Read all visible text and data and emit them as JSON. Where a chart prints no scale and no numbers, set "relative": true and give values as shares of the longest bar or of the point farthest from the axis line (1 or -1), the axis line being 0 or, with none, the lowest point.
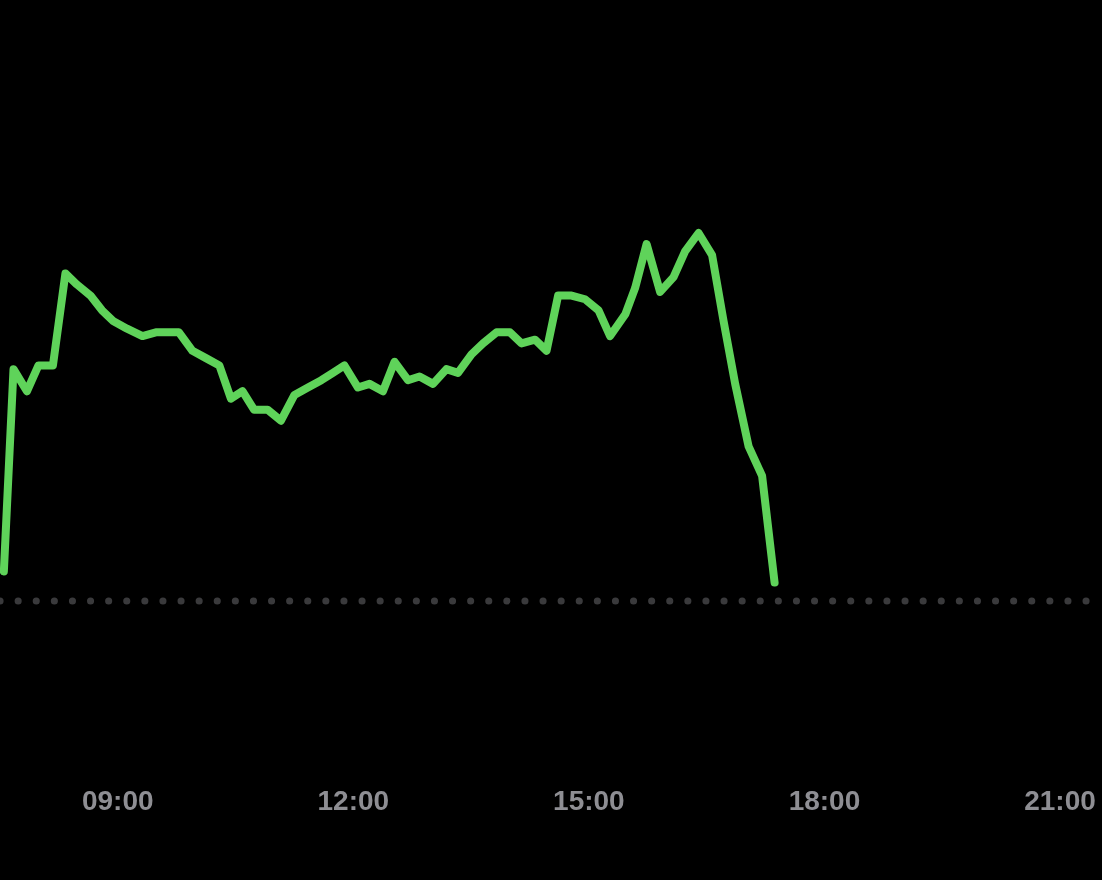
{
  "chart_data": {
    "type": "line",
    "relative": true,
    "x": [
      7.549,
      7.672,
      7.843,
      7.99,
      8.174,
      8.333,
      8.48,
      8.652,
      8.799,
      8.946,
      9.118,
      9.314,
      9.485,
      9.779,
      9.951,
      10.123,
      10.294,
      10.441,
      10.588,
      10.735,
      10.907,
      11.078,
      11.25,
      11.422,
      11.593,
      11.74,
      11.887,
      12.059,
      12.206,
      12.377,
      12.525,
      12.696,
      12.843,
      13.015,
      13.186,
      13.333,
      13.505,
      13.652,
      13.824,
      13.995,
      14.142,
      14.314,
      14.461,
      14.608,
      14.779,
      14.951,
      15.123,
      15.27,
      15.466,
      15.588,
      15.735,
      15.907,
      16.078,
      16.225,
      16.397,
      16.569,
      16.716,
      16.863,
      17.034,
      17.206,
      17.365
    ],
    "series": [
      {
        "color": "#5fd35a",
        "values": [
          0.08,
          0.63,
          0.57,
          0.64,
          0.64,
          0.89,
          0.86,
          0.83,
          0.79,
          0.76,
          0.74,
          0.72,
          0.73,
          0.73,
          0.68,
          0.66,
          0.64,
          0.55,
          0.57,
          0.52,
          0.52,
          0.49,
          0.56,
          0.58,
          0.6,
          0.62,
          0.64,
          0.58,
          0.59,
          0.57,
          0.65,
          0.6,
          0.61,
          0.59,
          0.63,
          0.62,
          0.67,
          0.7,
          0.73,
          0.73,
          0.7,
          0.71,
          0.68,
          0.83,
          0.83,
          0.82,
          0.79,
          0.72,
          0.78,
          0.85,
          0.97,
          0.84,
          0.88,
          0.95,
          1,
          0.94,
          0.76,
          0.59,
          0.42,
          0.34,
          0.05
        ]
      }
    ],
    "xlim": [
      7.5,
      21
    ],
    "xticks": [
      {
        "value": 9,
        "label": "09:00"
      },
      {
        "value": 12,
        "label": "12:00"
      },
      {
        "value": 15,
        "label": "15:00"
      },
      {
        "value": 18,
        "label": "18:00"
      },
      {
        "value": 21,
        "label": "21:00"
      }
    ],
    "ref_lines": [
      {
        "axis": "y",
        "value": 0,
        "line_style": "dotted",
        "color": "#3a3a3c"
      }
    ],
    "grid": false,
    "marker": "none",
    "line_style": "solid"
  }
}
